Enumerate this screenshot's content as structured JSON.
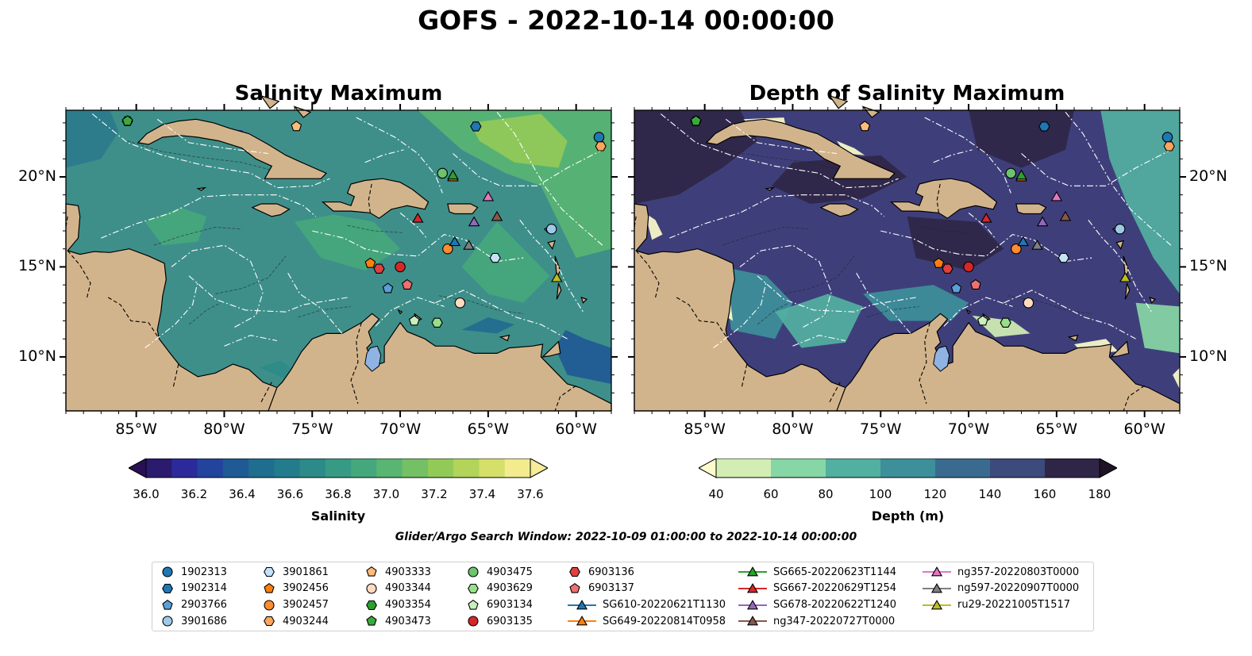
{
  "suptitle": "GOFS - 2022-10-14 00:00:00",
  "colors": {
    "land": "#d2b48c",
    "lake": "#8fb3e3",
    "eez_line": "#ffffff",
    "border_line": "#000000"
  },
  "panels": [
    {
      "title": "Salinity Maximum",
      "variable": "salinity",
      "background": "#3e8f8a",
      "colorbar": {
        "label": "Salinity",
        "ticks": [
          "36.0",
          "36.2",
          "36.4",
          "36.6",
          "36.8",
          "37.0",
          "37.2",
          "37.4",
          "37.6"
        ],
        "colors": [
          "#2a1b6e",
          "#2c2a9a",
          "#23449c",
          "#1f5a94",
          "#1f6d8f",
          "#227c8c",
          "#2c8b88",
          "#379a84",
          "#45a87c",
          "#58b572",
          "#74c065",
          "#92ca58",
          "#b2d45a",
          "#d4e06a",
          "#f2ec8f"
        ],
        "extend": "both",
        "under_color": "#2a0f54",
        "over_color": "#f6ec99"
      },
      "lon_labels": [
        "85°W",
        "80°W",
        "75°W",
        "70°W",
        "65°W",
        "60°W"
      ],
      "lat_labels": [
        "20°N",
        "15°N",
        "10°N"
      ],
      "lat_label_side": "left"
    },
    {
      "title": "Depth of Salinity Maximum",
      "variable": "depth",
      "background": "#3e3f7a",
      "colorbar": {
        "label": "Depth (m)",
        "ticks": [
          "40",
          "60",
          "80",
          "100",
          "120",
          "140",
          "160",
          "180"
        ],
        "colors": [
          "#d3eeb4",
          "#87d6a5",
          "#52b0a0",
          "#3d8f9a",
          "#3a6b8f",
          "#3c4a7c",
          "#2f2647"
        ],
        "extend": "both",
        "under_color": "#fcfccb",
        "over_color": "#1f1325"
      },
      "lon_labels": [
        "85°W",
        "80°W",
        "75°W",
        "70°W",
        "65°W",
        "60°W"
      ],
      "lat_labels": [
        "20°N",
        "15°N",
        "10°N"
      ],
      "lat_label_side": "right"
    }
  ],
  "map_extent": {
    "lon_min": -89,
    "lon_max": -58,
    "lat_min": 7,
    "lat_max": 23.7
  },
  "observations": [
    {
      "id": "1902313",
      "lon": -58.7,
      "lat": 22.2,
      "marker": "circle",
      "color": "#1f77b4"
    },
    {
      "id": "1902314",
      "lon": -65.7,
      "lat": 22.8,
      "marker": "hexagon",
      "color": "#1f77b4"
    },
    {
      "id": "2903766",
      "lon": -70.7,
      "lat": 13.8,
      "marker": "pentagon",
      "color": "#5aa0d8"
    },
    {
      "id": "3901686",
      "lon": -61.4,
      "lat": 17.1,
      "marker": "circle",
      "color": "#9ecae9"
    },
    {
      "id": "3901861",
      "lon": -64.6,
      "lat": 15.5,
      "marker": "hexagon",
      "color": "#c6e2f7"
    },
    {
      "id": "3902456",
      "lon": -71.7,
      "lat": 15.2,
      "marker": "pentagon",
      "color": "#ff7f0e"
    },
    {
      "id": "3902457",
      "lon": -67.3,
      "lat": 16.0,
      "marker": "circle",
      "color": "#ff8c2e"
    },
    {
      "id": "4903244",
      "lon": -58.6,
      "lat": 21.7,
      "marker": "hexagon",
      "color": "#ffa55c"
    },
    {
      "id": "4903333",
      "lon": -75.9,
      "lat": 22.8,
      "marker": "pentagon",
      "color": "#ffbb78"
    },
    {
      "id": "4903344",
      "lon": -66.6,
      "lat": 13.0,
      "marker": "circle",
      "color": "#ffdcc0"
    },
    {
      "id": "4903354",
      "lon": -85.5,
      "lat": 23.1,
      "marker": "hexagon",
      "color": "#2ca02c"
    },
    {
      "id": "4903473",
      "lon": -85.5,
      "lat": 23.1,
      "marker": "pentagon",
      "color": "#3aaa3a"
    },
    {
      "id": "4903475",
      "lon": -67.6,
      "lat": 20.2,
      "marker": "circle",
      "color": "#6cc46c"
    },
    {
      "id": "4903629",
      "lon": -67.9,
      "lat": 11.9,
      "marker": "hexagon",
      "color": "#98df8a"
    },
    {
      "id": "6903134",
      "lon": -69.2,
      "lat": 12.0,
      "marker": "pentagon",
      "color": "#c8f0bd"
    },
    {
      "id": "6903135",
      "lon": -70.0,
      "lat": 15.0,
      "marker": "circle",
      "color": "#d62728"
    },
    {
      "id": "6903136",
      "lon": -71.2,
      "lat": 14.9,
      "marker": "hexagon",
      "color": "#e04040"
    },
    {
      "id": "6903137",
      "lon": -69.6,
      "lat": 14.0,
      "marker": "pentagon",
      "color": "#f07070"
    },
    {
      "id": "SG610-20220621T1130",
      "lon": -66.9,
      "lat": 16.4,
      "marker": "triangle",
      "color": "#1f77b4"
    },
    {
      "id": "SG649-20220814T0958",
      "lon": -67.0,
      "lat": 20.0,
      "marker": "triangle",
      "color": "#ff7f0e"
    },
    {
      "id": "SG665-20220623T1144",
      "lon": -67.0,
      "lat": 20.1,
      "marker": "triangle",
      "color": "#2ca02c"
    },
    {
      "id": "SG667-20220629T1254",
      "lon": -69.0,
      "lat": 17.7,
      "marker": "triangle",
      "color": "#d62728"
    },
    {
      "id": "SG678-20220622T1240",
      "lon": -65.8,
      "lat": 17.5,
      "marker": "triangle",
      "color": "#9467bd"
    },
    {
      "id": "ng347-20220727T0000",
      "lon": -64.5,
      "lat": 17.8,
      "marker": "triangle",
      "color": "#8c564b"
    },
    {
      "id": "ng357-20220803T0000",
      "lon": -65.0,
      "lat": 18.9,
      "marker": "triangle",
      "color": "#e377c2"
    },
    {
      "id": "ng597-20220907T0000",
      "lon": -66.1,
      "lat": 16.2,
      "marker": "triangle",
      "color": "#7f7f7f"
    },
    {
      "id": "ru29-20221005T1517",
      "lon": -61.1,
      "lat": 14.4,
      "marker": "triangle",
      "color": "#bcbd22"
    }
  ],
  "search_window": "Glider/Argo Search Window: 2022-10-09 01:00:00 to 2022-10-14 00:00:00"
}
